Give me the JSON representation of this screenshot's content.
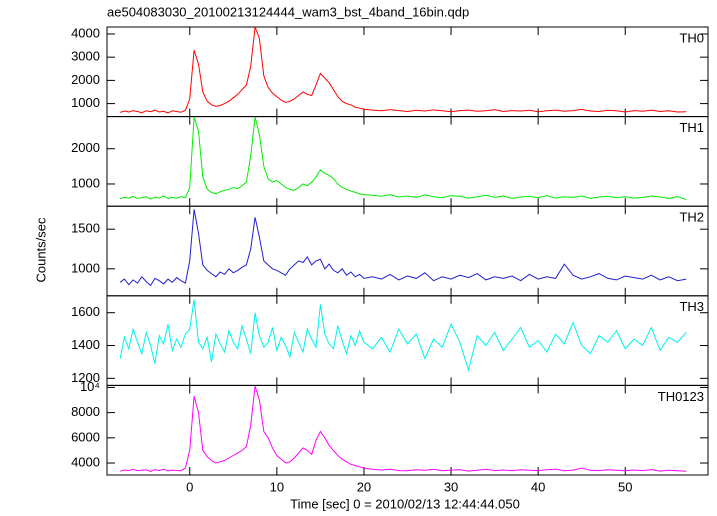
{
  "chart_data": {
    "type": "line",
    "title": "ae504083030_20100213124444_wam3_bst_4band_16bin.qdp",
    "xlabel": "Time [sec] 0 = 2010/02/13 12:44:44.050",
    "ylabel": "Counts/sec",
    "xlim": [
      -9.5,
      59.5
    ],
    "xticks": [
      0,
      10,
      20,
      30,
      40,
      50
    ],
    "x": [
      -8,
      -7.5,
      -7,
      -6.5,
      -6,
      -5.5,
      -5,
      -4.5,
      -4,
      -3.5,
      -3,
      -2.5,
      -2,
      -1.5,
      -1,
      -0.5,
      0,
      0.5,
      1,
      1.5,
      2,
      2.5,
      3,
      3.5,
      4,
      4.5,
      5,
      5.5,
      6,
      6.5,
      7,
      7.5,
      8,
      8.5,
      9,
      9.5,
      10,
      10.5,
      11,
      11.5,
      12,
      12.5,
      13,
      13.5,
      14,
      14.5,
      15,
      15.5,
      16,
      16.5,
      17,
      17.5,
      18,
      18.5,
      19,
      19.5,
      20,
      21,
      22,
      23,
      24,
      25,
      26,
      27,
      28,
      29,
      30,
      31,
      32,
      33,
      34,
      35,
      36,
      37,
      38,
      39,
      40,
      41,
      42,
      43,
      44,
      45,
      46,
      47,
      48,
      49,
      50,
      51,
      52,
      53,
      54,
      55,
      56,
      57
    ],
    "series": [
      {
        "name": "TH0",
        "color": "#ff0000",
        "ylim": [
          440,
          4300
        ],
        "yticks": [
          1000,
          2000,
          3000,
          4000
        ],
        "values": [
          620,
          680,
          640,
          700,
          660,
          610,
          690,
          650,
          720,
          640,
          670,
          600,
          690,
          660,
          630,
          710,
          1200,
          3300,
          2700,
          1500,
          1100,
          950,
          880,
          920,
          1000,
          1100,
          1250,
          1400,
          1600,
          1800,
          2600,
          4300,
          3800,
          2200,
          1700,
          1450,
          1300,
          1150,
          1050,
          1100,
          1200,
          1350,
          1500,
          1400,
          1350,
          1800,
          2300,
          2100,
          1900,
          1600,
          1300,
          1100,
          1000,
          950,
          850,
          800,
          760,
          720,
          690,
          740,
          700,
          660,
          710,
          680,
          730,
          690,
          650,
          700,
          720,
          670,
          690,
          740,
          660,
          700,
          680,
          710,
          650,
          690,
          720,
          670,
          700,
          750,
          680,
          660,
          710,
          690,
          640,
          700,
          670,
          720,
          660,
          690,
          640,
          650
        ]
      },
      {
        "name": "TH1",
        "color": "#00ee00",
        "ylim": [
          370,
          2910
        ],
        "yticks": [
          1000,
          2000
        ],
        "values": [
          580,
          620,
          600,
          650,
          590,
          610,
          640,
          570,
          630,
          600,
          660,
          590,
          620,
          600,
          640,
          610,
          900,
          2900,
          2500,
          1200,
          850,
          760,
          720,
          780,
          820,
          850,
          900,
          870,
          950,
          1050,
          1800,
          2900,
          2400,
          1500,
          1150,
          1050,
          1100,
          1000,
          900,
          850,
          820,
          900,
          1000,
          950,
          1050,
          1200,
          1400,
          1300,
          1250,
          1150,
          1000,
          900,
          850,
          800,
          760,
          720,
          700,
          680,
          650,
          700,
          630,
          660,
          620,
          690,
          640,
          610,
          670,
          650,
          600,
          640,
          680,
          620,
          660,
          590,
          630,
          650,
          610,
          670,
          600,
          640,
          620,
          660,
          590,
          630,
          650,
          610,
          640,
          600,
          620,
          660,
          630,
          590,
          640,
          560
        ]
      },
      {
        "name": "TH2",
        "color": "#2020d0",
        "ylim": [
          660,
          1790
        ],
        "yticks": [
          1000,
          1500
        ],
        "values": [
          830,
          870,
          800,
          860,
          820,
          900,
          840,
          790,
          880,
          850,
          810,
          870,
          830,
          890,
          850,
          820,
          1100,
          1750,
          1450,
          1050,
          980,
          940,
          900,
          960,
          930,
          1000,
          950,
          980,
          1020,
          1050,
          1250,
          1650,
          1400,
          1100,
          1050,
          1000,
          980,
          950,
          920,
          1000,
          1050,
          1100,
          1080,
          1150,
          1050,
          1100,
          1120,
          1000,
          1060,
          980,
          950,
          1000,
          920,
          960,
          900,
          930,
          880,
          900,
          870,
          930,
          860,
          910,
          880,
          950,
          850,
          900,
          870,
          920,
          890,
          940,
          860,
          900,
          880,
          910,
          850,
          930,
          870,
          900,
          880,
          1060,
          920,
          870,
          900,
          940,
          880,
          860,
          910,
          890,
          870,
          920,
          860,
          900,
          850,
          870
        ]
      },
      {
        "name": "TH3",
        "color": "#00f0f0",
        "ylim": [
          1157,
          1703
        ],
        "yticks": [
          1200,
          1400,
          1600
        ],
        "values": [
          1320,
          1450,
          1380,
          1500,
          1420,
          1350,
          1480,
          1400,
          1290,
          1460,
          1410,
          1530,
          1370,
          1440,
          1390,
          1470,
          1500,
          1680,
          1420,
          1380,
          1450,
          1300,
          1470,
          1410,
          1360,
          1490,
          1420,
          1380,
          1520,
          1440,
          1350,
          1600,
          1460,
          1390,
          1420,
          1510,
          1370,
          1450,
          1400,
          1330,
          1480,
          1420,
          1360,
          1500,
          1440,
          1390,
          1650,
          1470,
          1410,
          1380,
          1520,
          1430,
          1350,
          1460,
          1400,
          1490,
          1420,
          1380,
          1450,
          1360,
          1500,
          1410,
          1470,
          1320,
          1440,
          1390,
          1530,
          1420,
          1250,
          1460,
          1400,
          1480,
          1370,
          1440,
          1510,
          1390,
          1430,
          1360,
          1470,
          1410,
          1540,
          1400,
          1350,
          1460,
          1420,
          1490,
          1380,
          1440,
          1400,
          1510,
          1370,
          1450,
          1420,
          1480
        ]
      },
      {
        "name": "TH0123",
        "color": "#ff00ff",
        "ylim": [
          3050,
          10160
        ],
        "yticks": [
          4000,
          6000,
          8000,
          {
            "value": 10000,
            "label": "10⁴"
          }
        ],
        "values": [
          3350,
          3450,
          3400,
          3500,
          3380,
          3420,
          3460,
          3330,
          3480,
          3400,
          3520,
          3370,
          3440,
          3410,
          3390,
          3600,
          5000,
          9300,
          8000,
          5000,
          4500,
          4200,
          4000,
          4100,
          4200,
          4400,
          4600,
          4800,
          5000,
          5300,
          7000,
          10100,
          9000,
          6500,
          6000,
          5200,
          4600,
          4300,
          4000,
          4100,
          4400,
          4800,
          5200,
          5000,
          4700,
          5800,
          6500,
          6000,
          5400,
          5000,
          4600,
          4300,
          4100,
          3900,
          3800,
          3700,
          3600,
          3500,
          3450,
          3520,
          3400,
          3380,
          3460,
          3420,
          3500,
          3390,
          3440,
          3480,
          3360,
          3420,
          3510,
          3400,
          3450,
          3380,
          3470,
          3430,
          3400,
          3460,
          3520,
          3380,
          3440,
          3600,
          3420,
          3400,
          3470,
          3430,
          3380,
          3450,
          3400,
          3480,
          3360,
          3420,
          3390,
          3350
        ]
      }
    ]
  }
}
